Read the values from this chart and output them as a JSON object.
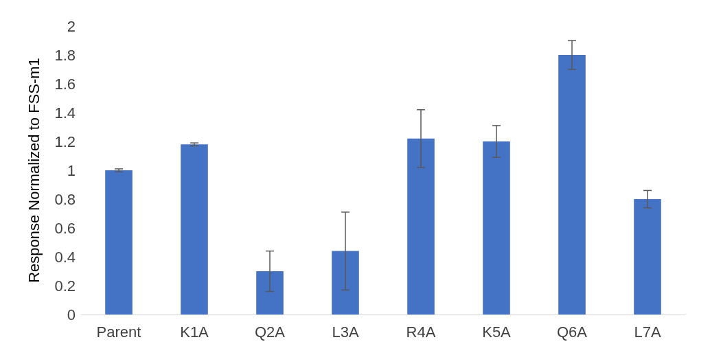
{
  "chart_data": {
    "type": "bar",
    "ylabel": "Response Normalized to FSS-m1",
    "categories": [
      "Parent",
      "K1A",
      "Q2A",
      "L3A",
      "R4A",
      "K5A",
      "Q6A",
      "L7A"
    ],
    "values": [
      1.0,
      1.18,
      0.3,
      0.44,
      1.22,
      1.2,
      1.8,
      0.8
    ],
    "errors": [
      0.01,
      0.01,
      0.14,
      0.27,
      0.2,
      0.11,
      0.1,
      0.06
    ],
    "color": "#4472c4",
    "ylim": [
      0,
      2
    ],
    "yticks": [
      0,
      0.2,
      0.4,
      0.6,
      0.8,
      1,
      1.2,
      1.4,
      1.6,
      1.8,
      2
    ]
  }
}
